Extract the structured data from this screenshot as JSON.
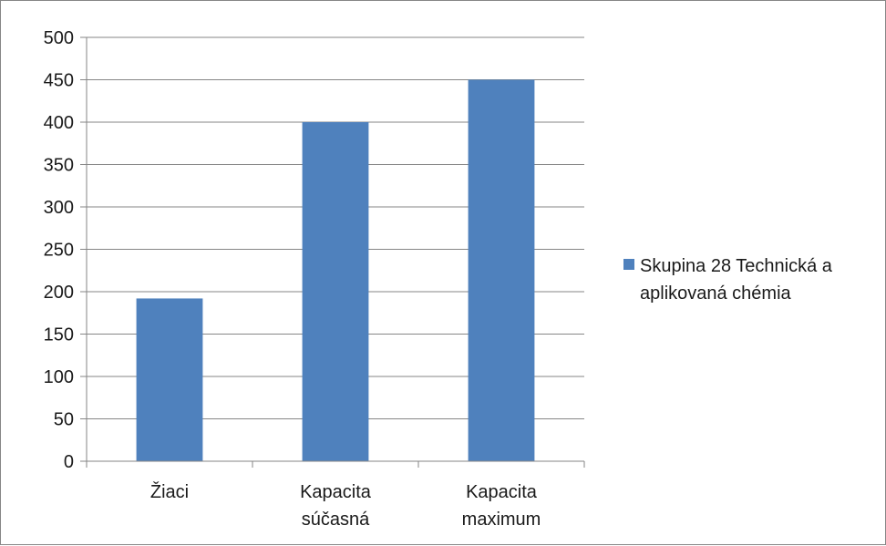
{
  "chart_data": {
    "type": "bar",
    "title": "",
    "xlabel": "",
    "ylabel": "",
    "categories": [
      [
        "Žiaci"
      ],
      [
        "Kapacita",
        "súčasná"
      ],
      [
        "Kapacita",
        "maximum"
      ]
    ],
    "series": [
      {
        "name": "Skupina 28 Technická a aplikovaná chémia",
        "name_lines": [
          "Skupina 28 Technická a",
          "aplikovaná chémia"
        ],
        "color": "#4f81bd",
        "values": [
          192,
          400,
          450
        ]
      }
    ],
    "ylim": [
      0,
      500
    ],
    "yticks": [
      0,
      50,
      100,
      150,
      200,
      250,
      300,
      350,
      400,
      450,
      500
    ],
    "grid": true,
    "legend_position": "right"
  }
}
